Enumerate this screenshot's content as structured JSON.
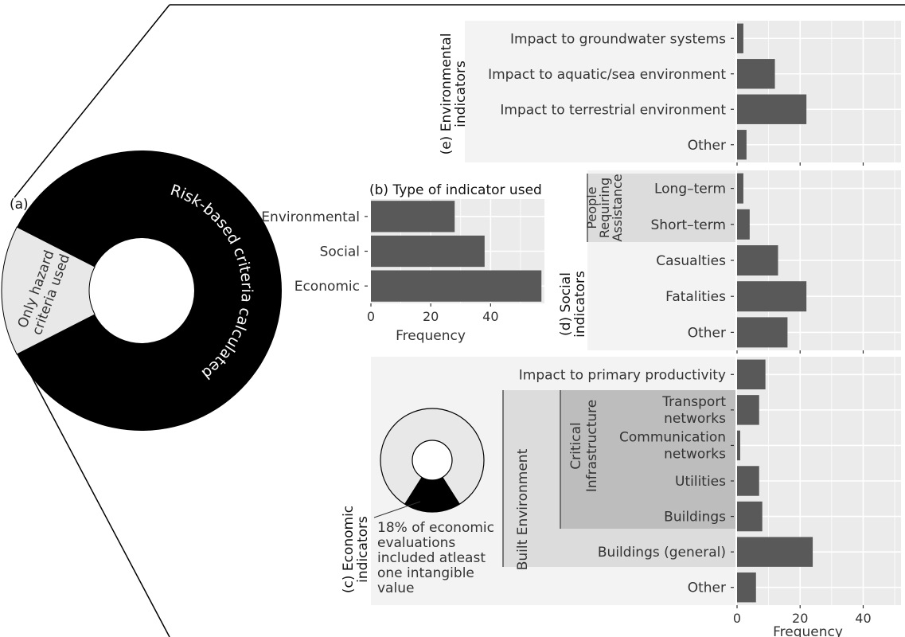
{
  "panel_labels": {
    "a": "(a)",
    "b_title": "(b) Type of indicator used",
    "c_line1": "(c) Economic",
    "c_line2": "indicators",
    "d_line1": "(d) Social",
    "d_line2": "indicators",
    "e_line1": "(e) Environmental",
    "e_line2": "indicators"
  },
  "donut_a": {
    "slices": [
      {
        "label": "Risk-based criteria calculated",
        "value": 85,
        "color": "#000000"
      },
      {
        "label_lines": [
          "Only hazard",
          "criteria used"
        ],
        "value": 15,
        "color": "#e8e8e8"
      }
    ]
  },
  "donut_c": {
    "annotation": [
      "18% of economic",
      "evaluations",
      "included atleast",
      "one intangible",
      "value"
    ],
    "fraction": 0.18
  },
  "group_labels": {
    "people_requiring_assistance": [
      "People",
      "Requiring",
      "Assistance"
    ],
    "critical_infrastructure": [
      "Critical",
      "Infrastructure"
    ],
    "built_environment": "Built Environment"
  },
  "chart_data": [
    {
      "type": "bar",
      "orientation": "horizontal",
      "title": "(b) Type of indicator used",
      "categories": [
        "Environmental",
        "Social",
        "Economic"
      ],
      "values": [
        28,
        38,
        57
      ],
      "xlabel": "Frequency",
      "xticks": [
        0,
        20,
        40
      ],
      "xlim": [
        0,
        58
      ],
      "grid": true
    },
    {
      "type": "bar",
      "orientation": "horizontal",
      "title": "(e) Environmental indicators",
      "categories": [
        "Impact to groundwater systems",
        "Impact to aquatic/sea environment",
        "Impact to terrestrial environment",
        "Other"
      ],
      "values": [
        2,
        12,
        22,
        3
      ],
      "xlim": [
        0,
        52
      ],
      "grid": true
    },
    {
      "type": "bar",
      "orientation": "horizontal",
      "title": "(d) Social indicators",
      "categories": [
        "Long–term",
        "Short–term",
        "Casualties",
        "Fatalities",
        "Other"
      ],
      "values": [
        2,
        4,
        13,
        22,
        16
      ],
      "xlim": [
        0,
        52
      ],
      "grid": true
    },
    {
      "type": "bar",
      "orientation": "horizontal",
      "title": "(c) Economic indicators",
      "categories": [
        "Impact to primary productivity",
        "Transport networks",
        "Communication networks",
        "Utilities",
        "Buildings",
        "Buildings (general)",
        "Other"
      ],
      "values": [
        9,
        7,
        1,
        7,
        8,
        24,
        6
      ],
      "xlabel": "Frequency",
      "xticks": [
        0,
        20,
        40
      ],
      "xlim": [
        0,
        52
      ],
      "grid": true
    }
  ]
}
